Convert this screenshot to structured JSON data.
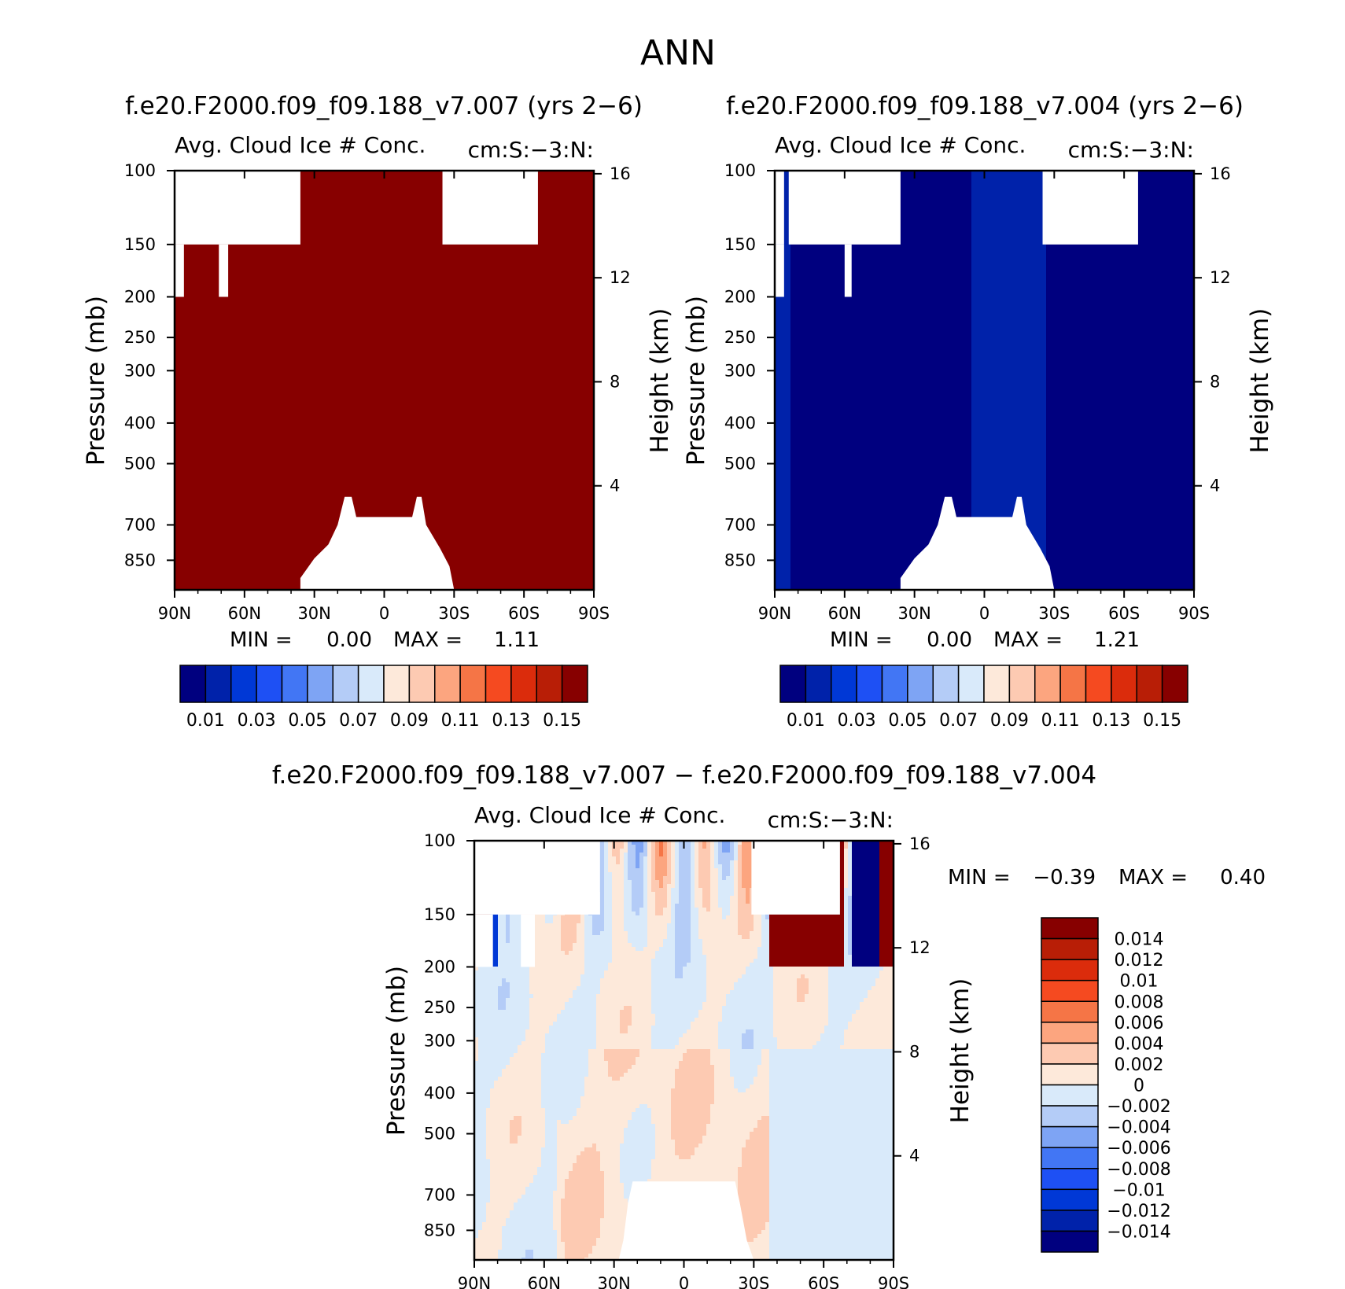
{
  "figure": {
    "title": "ANN"
  },
  "chart_data": [
    {
      "type": "heatmap",
      "title": "f.e20.F2000.f09_f09.188_v7.007 (yrs 2−6)",
      "subtitle": "Avg. Cloud Ice # Conc.",
      "units": "cm:S:−3:N:",
      "xlabel": "",
      "ylabel": "Pressure (mb)",
      "ylabel_right": "Height (km)",
      "x_ticks": [
        "90N",
        "60N",
        "30N",
        "0",
        "30S",
        "60S",
        "90S"
      ],
      "x_values": [
        90,
        60,
        30,
        0,
        -30,
        -60,
        -90
      ],
      "y_ticks": [
        100,
        150,
        200,
        250,
        300,
        400,
        500,
        700,
        850
      ],
      "y_right_ticks": [
        16,
        12,
        8,
        4
      ],
      "ylim": [
        100,
        1000
      ],
      "y_scale": "log",
      "min_label": "MIN =",
      "min_value": "0.00",
      "max_label": "MAX =",
      "max_value": "1.11",
      "colorbar": {
        "orientation": "horizontal",
        "labels": [
          "0.01",
          "0.03",
          "0.05",
          "0.07",
          "0.09",
          "0.11",
          "0.13",
          "0.15"
        ],
        "levels": [
          0.01,
          0.02,
          0.03,
          0.04,
          0.05,
          0.06,
          0.07,
          0.08,
          0.09,
          0.1,
          0.11,
          0.12,
          0.13,
          0.14,
          0.15
        ]
      }
    },
    {
      "type": "heatmap",
      "title": "f.e20.F2000.f09_f09.188_v7.004 (yrs 2−6)",
      "subtitle": "Avg. Cloud Ice # Conc.",
      "units": "cm:S:−3:N:",
      "xlabel": "",
      "ylabel": "Pressure (mb)",
      "ylabel_right": "Height (km)",
      "x_ticks": [
        "90N",
        "60N",
        "30N",
        "0",
        "30S",
        "60S",
        "90S"
      ],
      "x_values": [
        90,
        60,
        30,
        0,
        -30,
        -60,
        -90
      ],
      "y_ticks": [
        100,
        150,
        200,
        250,
        300,
        400,
        500,
        700,
        850
      ],
      "y_right_ticks": [
        16,
        12,
        8,
        4
      ],
      "ylim": [
        100,
        1000
      ],
      "y_scale": "log",
      "min_label": "MIN =",
      "min_value": "0.00",
      "max_label": "MAX =",
      "max_value": "1.21",
      "colorbar": {
        "orientation": "horizontal",
        "labels": [
          "0.01",
          "0.03",
          "0.05",
          "0.07",
          "0.09",
          "0.11",
          "0.13",
          "0.15"
        ],
        "levels": [
          0.01,
          0.02,
          0.03,
          0.04,
          0.05,
          0.06,
          0.07,
          0.08,
          0.09,
          0.1,
          0.11,
          0.12,
          0.13,
          0.14,
          0.15
        ]
      }
    },
    {
      "type": "heatmap",
      "title": "f.e20.F2000.f09_f09.188_v7.007 − f.e20.F2000.f09_f09.188_v7.004",
      "subtitle": "Avg. Cloud Ice # Conc.",
      "units": "cm:S:−3:N:",
      "xlabel": "",
      "ylabel": "Pressure (mb)",
      "ylabel_right": "Height (km)",
      "x_ticks": [
        "90N",
        "60N",
        "30N",
        "0",
        "30S",
        "60S",
        "90S"
      ],
      "x_values": [
        90,
        60,
        30,
        0,
        -30,
        -60,
        -90
      ],
      "y_ticks": [
        100,
        150,
        200,
        250,
        300,
        400,
        500,
        700,
        850
      ],
      "y_right_ticks": [
        16,
        12,
        8,
        4
      ],
      "ylim": [
        100,
        1000
      ],
      "y_scale": "log",
      "min_label": "MIN =",
      "min_value": "−0.39",
      "max_label": "MAX =",
      "max_value": "0.40",
      "colorbar": {
        "orientation": "vertical",
        "labels": [
          "0.014",
          "0.012",
          "0.01",
          "0.008",
          "0.006",
          "0.004",
          "0.002",
          "0",
          "−0.002",
          "−0.004",
          "−0.006",
          "−0.008",
          "−0.01",
          "−0.012",
          "−0.014"
        ],
        "levels": [
          0.014,
          0.012,
          0.01,
          0.008,
          0.006,
          0.004,
          0.002,
          0,
          -0.002,
          -0.004,
          -0.006,
          -0.008,
          -0.01,
          -0.012,
          -0.014
        ]
      }
    }
  ],
  "colors": {
    "palette": [
      "#00007f",
      "#0022aa",
      "#0038d6",
      "#1e50f4",
      "#4276f4",
      "#7ea4f4",
      "#b4ccf7",
      "#d9eafa",
      "#fde9da",
      "#fdcab2",
      "#fca57f",
      "#f57546",
      "#f54a20",
      "#db2c0c",
      "#b81e06",
      "#870000"
    ]
  }
}
